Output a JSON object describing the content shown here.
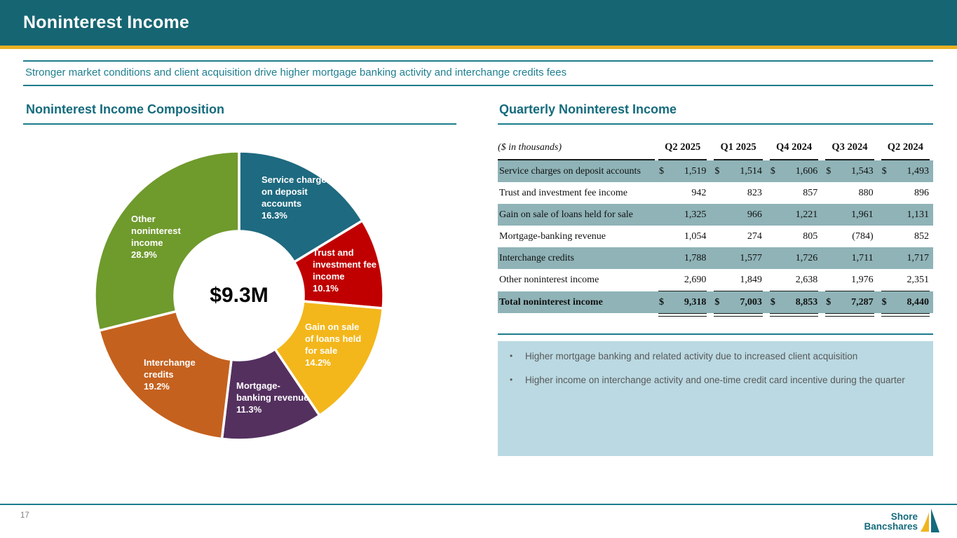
{
  "slide": {
    "title": "Noninterest Income",
    "subtitle": "Stronger market conditions and client acquisition drive higher mortgage banking activity and interchange credits fees",
    "page_number": "17",
    "logo": {
      "line1": "Shore",
      "line2": "Bancshares",
      "icon": "sailboat-icon"
    }
  },
  "left_panel": {
    "heading": "Noninterest Income Composition"
  },
  "right_panel": {
    "heading": "Quarterly Noninterest Income",
    "notes": [
      "Higher mortgage banking and related activity due to increased client acquisition",
      "Higher income on interchange activity and one-time credit card incentive during the quarter"
    ]
  },
  "chart_data": [
    {
      "type": "pie",
      "subtype": "donut",
      "title": "Noninterest Income Composition",
      "center_label": "$9.3M",
      "direction": "clockwise",
      "start_angle_deg": 0,
      "segments": [
        {
          "label": "Service charges on deposit accounts",
          "pct": 16.3,
          "pct_label": "16.3%",
          "color": "#1E6A80"
        },
        {
          "label": "Trust and investment fee income",
          "pct": 10.1,
          "pct_label": "10.1%",
          "color": "#C00000"
        },
        {
          "label": "Gain on sale of loans held for sale",
          "pct": 14.2,
          "pct_label": "14.2%",
          "color": "#F3B71B"
        },
        {
          "label": "Mortgage-banking revenue",
          "pct": 11.3,
          "pct_label": "11.3%",
          "color": "#54305F"
        },
        {
          "label": "Interchange credits",
          "pct": 19.2,
          "pct_label": "19.2%",
          "color": "#C5611E"
        },
        {
          "label": "Other noninterest income",
          "pct": 28.9,
          "pct_label": "28.9%",
          "color": "#6F9A2C"
        }
      ]
    },
    {
      "type": "table",
      "title": "Quarterly Noninterest Income",
      "unit_note": "($ in thousands)",
      "columns": [
        "Q2 2025",
        "Q1 2025",
        "Q4 2024",
        "Q3 2024",
        "Q2 2024"
      ],
      "rows": [
        {
          "label": "Service charges on deposit accounts",
          "dollar_sign": true,
          "shaded": true,
          "values": [
            "1,519",
            "1,514",
            "1,606",
            "1,543",
            "1,493"
          ]
        },
        {
          "label": "Trust and investment fee income",
          "dollar_sign": false,
          "shaded": false,
          "values": [
            "942",
            "823",
            "857",
            "880",
            "896"
          ]
        },
        {
          "label": "Gain on sale of loans held for sale",
          "dollar_sign": false,
          "shaded": true,
          "values": [
            "1,325",
            "966",
            "1,221",
            "1,961",
            "1,131"
          ]
        },
        {
          "label": "Mortgage-banking revenue",
          "dollar_sign": false,
          "shaded": false,
          "values": [
            "1,054",
            "274",
            "805",
            "(784)",
            "852"
          ]
        },
        {
          "label": "Interchange credits",
          "dollar_sign": false,
          "shaded": true,
          "values": [
            "1,788",
            "1,577",
            "1,726",
            "1,711",
            "1,717"
          ]
        },
        {
          "label": "Other noninterest income",
          "dollar_sign": false,
          "shaded": false,
          "rule_below": true,
          "values": [
            "2,690",
            "1,849",
            "2,638",
            "1,976",
            "2,351"
          ]
        },
        {
          "label": "Total noninterest income",
          "dollar_sign": true,
          "shaded": true,
          "is_total": true,
          "values": [
            "9,318",
            "7,003",
            "8,853",
            "7,287",
            "8,440"
          ]
        }
      ]
    }
  ],
  "colors": {
    "header_bar": "#166572",
    "gold_accent": "#EBB122",
    "teal_rule": "#1D7C8D",
    "heading_text": "#156B7D",
    "table_shaded_row": "#8FB3B7",
    "notes_background": "#BAD9E2"
  }
}
